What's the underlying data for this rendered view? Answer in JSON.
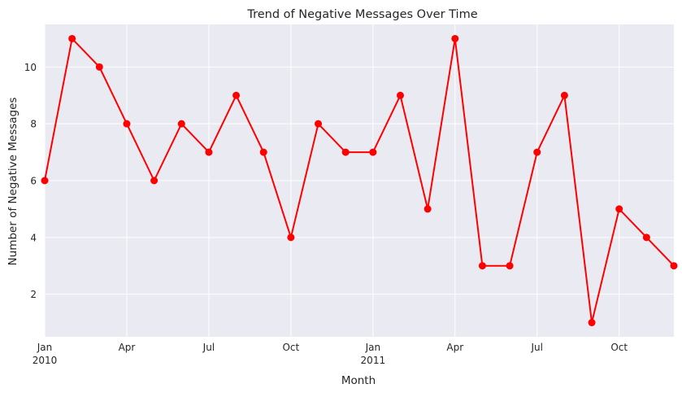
{
  "chart_data": {
    "type": "line",
    "title": "Trend of Negative Messages Over Time",
    "xlabel": "Month",
    "ylabel": "Number of Negative Messages",
    "x": [
      "2010-01",
      "2010-02",
      "2010-03",
      "2010-04",
      "2010-05",
      "2010-06",
      "2010-07",
      "2010-08",
      "2010-09",
      "2010-10",
      "2010-11",
      "2010-12",
      "2011-01",
      "2011-02",
      "2011-03",
      "2011-04",
      "2011-05",
      "2011-06",
      "2011-07",
      "2011-08",
      "2011-09",
      "2011-10",
      "2011-11",
      "2011-12"
    ],
    "series": [
      {
        "values": [
          6,
          11,
          10,
          8,
          6,
          8,
          7,
          9,
          7,
          4,
          8,
          7,
          7,
          9,
          5,
          11,
          3,
          3,
          7,
          9,
          1,
          5,
          4,
          3
        ],
        "color": "#ff0000",
        "marker": "circle"
      }
    ],
    "xlim": [
      "2010-01",
      "2011-12"
    ],
    "ylim": [
      0.5,
      11.5
    ],
    "yticks": [
      2,
      4,
      6,
      8,
      10
    ],
    "xticks": [
      {
        "month": "2010-01",
        "label": "Jan",
        "sublabel": "2010"
      },
      {
        "month": "2010-04",
        "label": "Apr",
        "sublabel": ""
      },
      {
        "month": "2010-07",
        "label": "Jul",
        "sublabel": ""
      },
      {
        "month": "2010-10",
        "label": "Oct",
        "sublabel": ""
      },
      {
        "month": "2011-01",
        "label": "Jan",
        "sublabel": "2011"
      },
      {
        "month": "2011-04",
        "label": "Apr",
        "sublabel": ""
      },
      {
        "month": "2011-07",
        "label": "Jul",
        "sublabel": ""
      },
      {
        "month": "2011-10",
        "label": "Oct",
        "sublabel": ""
      }
    ],
    "grid": true,
    "background": "#eaeaf2",
    "grid_color": "#ffffff"
  }
}
